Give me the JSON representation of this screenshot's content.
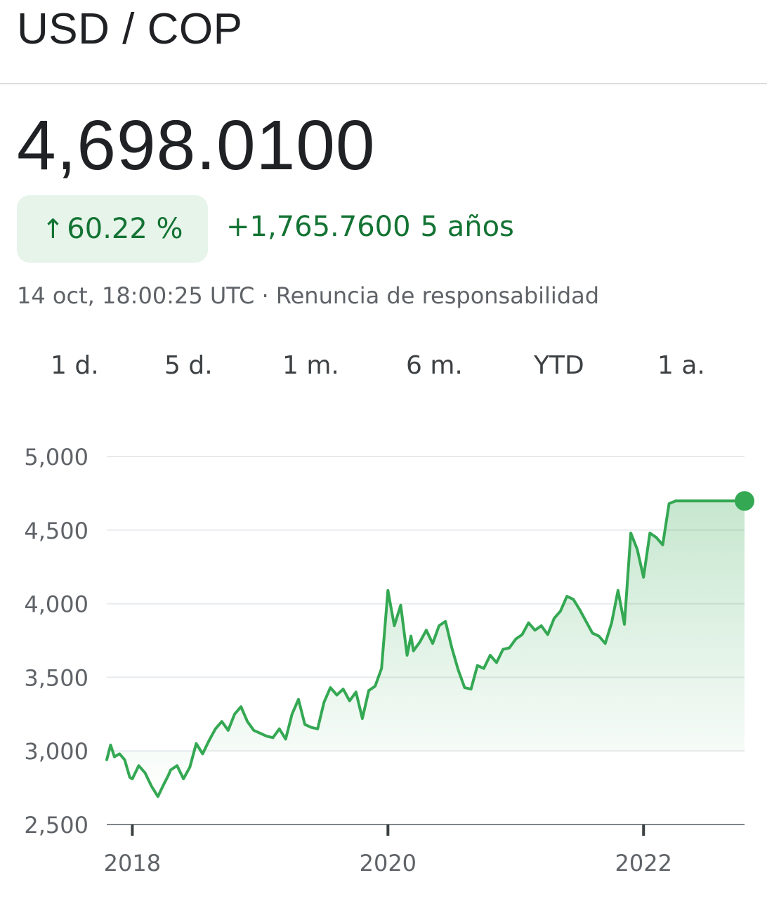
{
  "header": {
    "pair": "USD / COP"
  },
  "quote": {
    "price": "4,698.0100",
    "pct_change": "60.22 %",
    "abs_change": "+1,765.7600",
    "period": "5 años",
    "timestamp": "14 oct, 18:00:25 UTC",
    "separator": "·",
    "disclaimer": "Renuncia de responsabilidad"
  },
  "tabs": [
    "1 d.",
    "5 d.",
    "1 m.",
    "6 m.",
    "YTD",
    "1 a."
  ],
  "colors": {
    "line": "#34a853",
    "positive_text": "#137333",
    "badge_bg": "#e6f4ea"
  },
  "icons": {
    "change_arrow": "arrow-up-icon"
  },
  "chart_data": {
    "type": "line",
    "title": "",
    "xlabel": "",
    "ylabel": "",
    "ylim": [
      2500,
      5000
    ],
    "xlim": [
      2017.8,
      2022.79
    ],
    "yticks": [
      5000,
      4500,
      4000,
      3500,
      3000,
      2500
    ],
    "ytick_labels": [
      "5,000",
      "4,500",
      "4,000",
      "3,500",
      "3,000",
      "2,500"
    ],
    "xticks": [
      2018,
      2020,
      2022
    ],
    "xtick_labels": [
      "2018",
      "2020",
      "2022"
    ],
    "grid": true,
    "area_fill": true,
    "last_point_marker": true,
    "series": [
      {
        "x": [
          2017.8,
          2017.83,
          2017.86,
          2017.9,
          2017.94,
          2017.98,
          2018.0,
          2018.05,
          2018.1,
          2018.15,
          2018.2,
          2018.25,
          2018.28,
          2018.3,
          2018.35,
          2018.4,
          2018.45,
          2018.5,
          2018.55,
          2018.6,
          2018.65,
          2018.7,
          2018.75,
          2018.8,
          2018.85,
          2018.9,
          2018.95,
          2019.0,
          2019.05,
          2019.1,
          2019.15,
          2019.2,
          2019.25,
          2019.3,
          2019.35,
          2019.4,
          2019.45,
          2019.5,
          2019.55,
          2019.6,
          2019.65,
          2019.7,
          2019.75,
          2019.8,
          2019.85,
          2019.9,
          2019.95,
          2020.0,
          2020.05,
          2020.1,
          2020.15,
          2020.18,
          2020.2,
          2020.25,
          2020.3,
          2020.35,
          2020.4,
          2020.45,
          2020.5,
          2020.55,
          2020.6,
          2020.65,
          2020.7,
          2020.75,
          2020.8,
          2020.85,
          2020.9,
          2020.95,
          2021.0,
          2021.05,
          2021.1,
          2021.15,
          2021.2,
          2021.25,
          2021.3,
          2021.35,
          2021.4,
          2021.45,
          2021.5,
          2021.55,
          2021.6,
          2021.65,
          2021.7,
          2021.75,
          2021.8,
          2021.85,
          2021.9,
          2021.95,
          2022.0,
          2022.05,
          2022.1,
          2022.15,
          2022.2,
          2022.25,
          2022.3,
          2022.35,
          2022.4,
          2022.45,
          2022.5,
          2022.55,
          2022.6,
          2022.65,
          2022.7,
          2022.75,
          2022.79
        ],
        "y": [
          2940,
          3040,
          2960,
          2980,
          2940,
          2820,
          2810,
          2900,
          2850,
          2760,
          2690,
          2780,
          2830,
          2870,
          2900,
          2810,
          2890,
          3050,
          2980,
          3070,
          3150,
          3200,
          3140,
          3250,
          3300,
          3200,
          3140,
          3120,
          3100,
          3090,
          3150,
          3080,
          3250,
          3350,
          3180,
          3160,
          3150,
          3330,
          3430,
          3380,
          3420,
          3340,
          3400,
          3220,
          3410,
          3440,
          3560,
          4090,
          3850,
          3990,
          3650,
          3780,
          3680,
          3740,
          3820,
          3730,
          3850,
          3880,
          3700,
          3550,
          3430,
          3420,
          3580,
          3560,
          3650,
          3600,
          3690,
          3700,
          3760,
          3790,
          3870,
          3820,
          3850,
          3790,
          3900,
          3950,
          4050,
          4030,
          3960,
          3880,
          3800,
          3780,
          3730,
          3870,
          4090,
          3860,
          4480,
          4370,
          4180,
          4480,
          4450,
          4400,
          4680,
          4698.01,
          4698.01,
          4698.01,
          4698.01,
          4698.01,
          4698.01,
          4698.01,
          4698.01,
          4698.01,
          4698.01,
          4698.01,
          4698.01
        ],
        "values_note": ""
      }
    ],
    "last_value": 4698.01
  }
}
